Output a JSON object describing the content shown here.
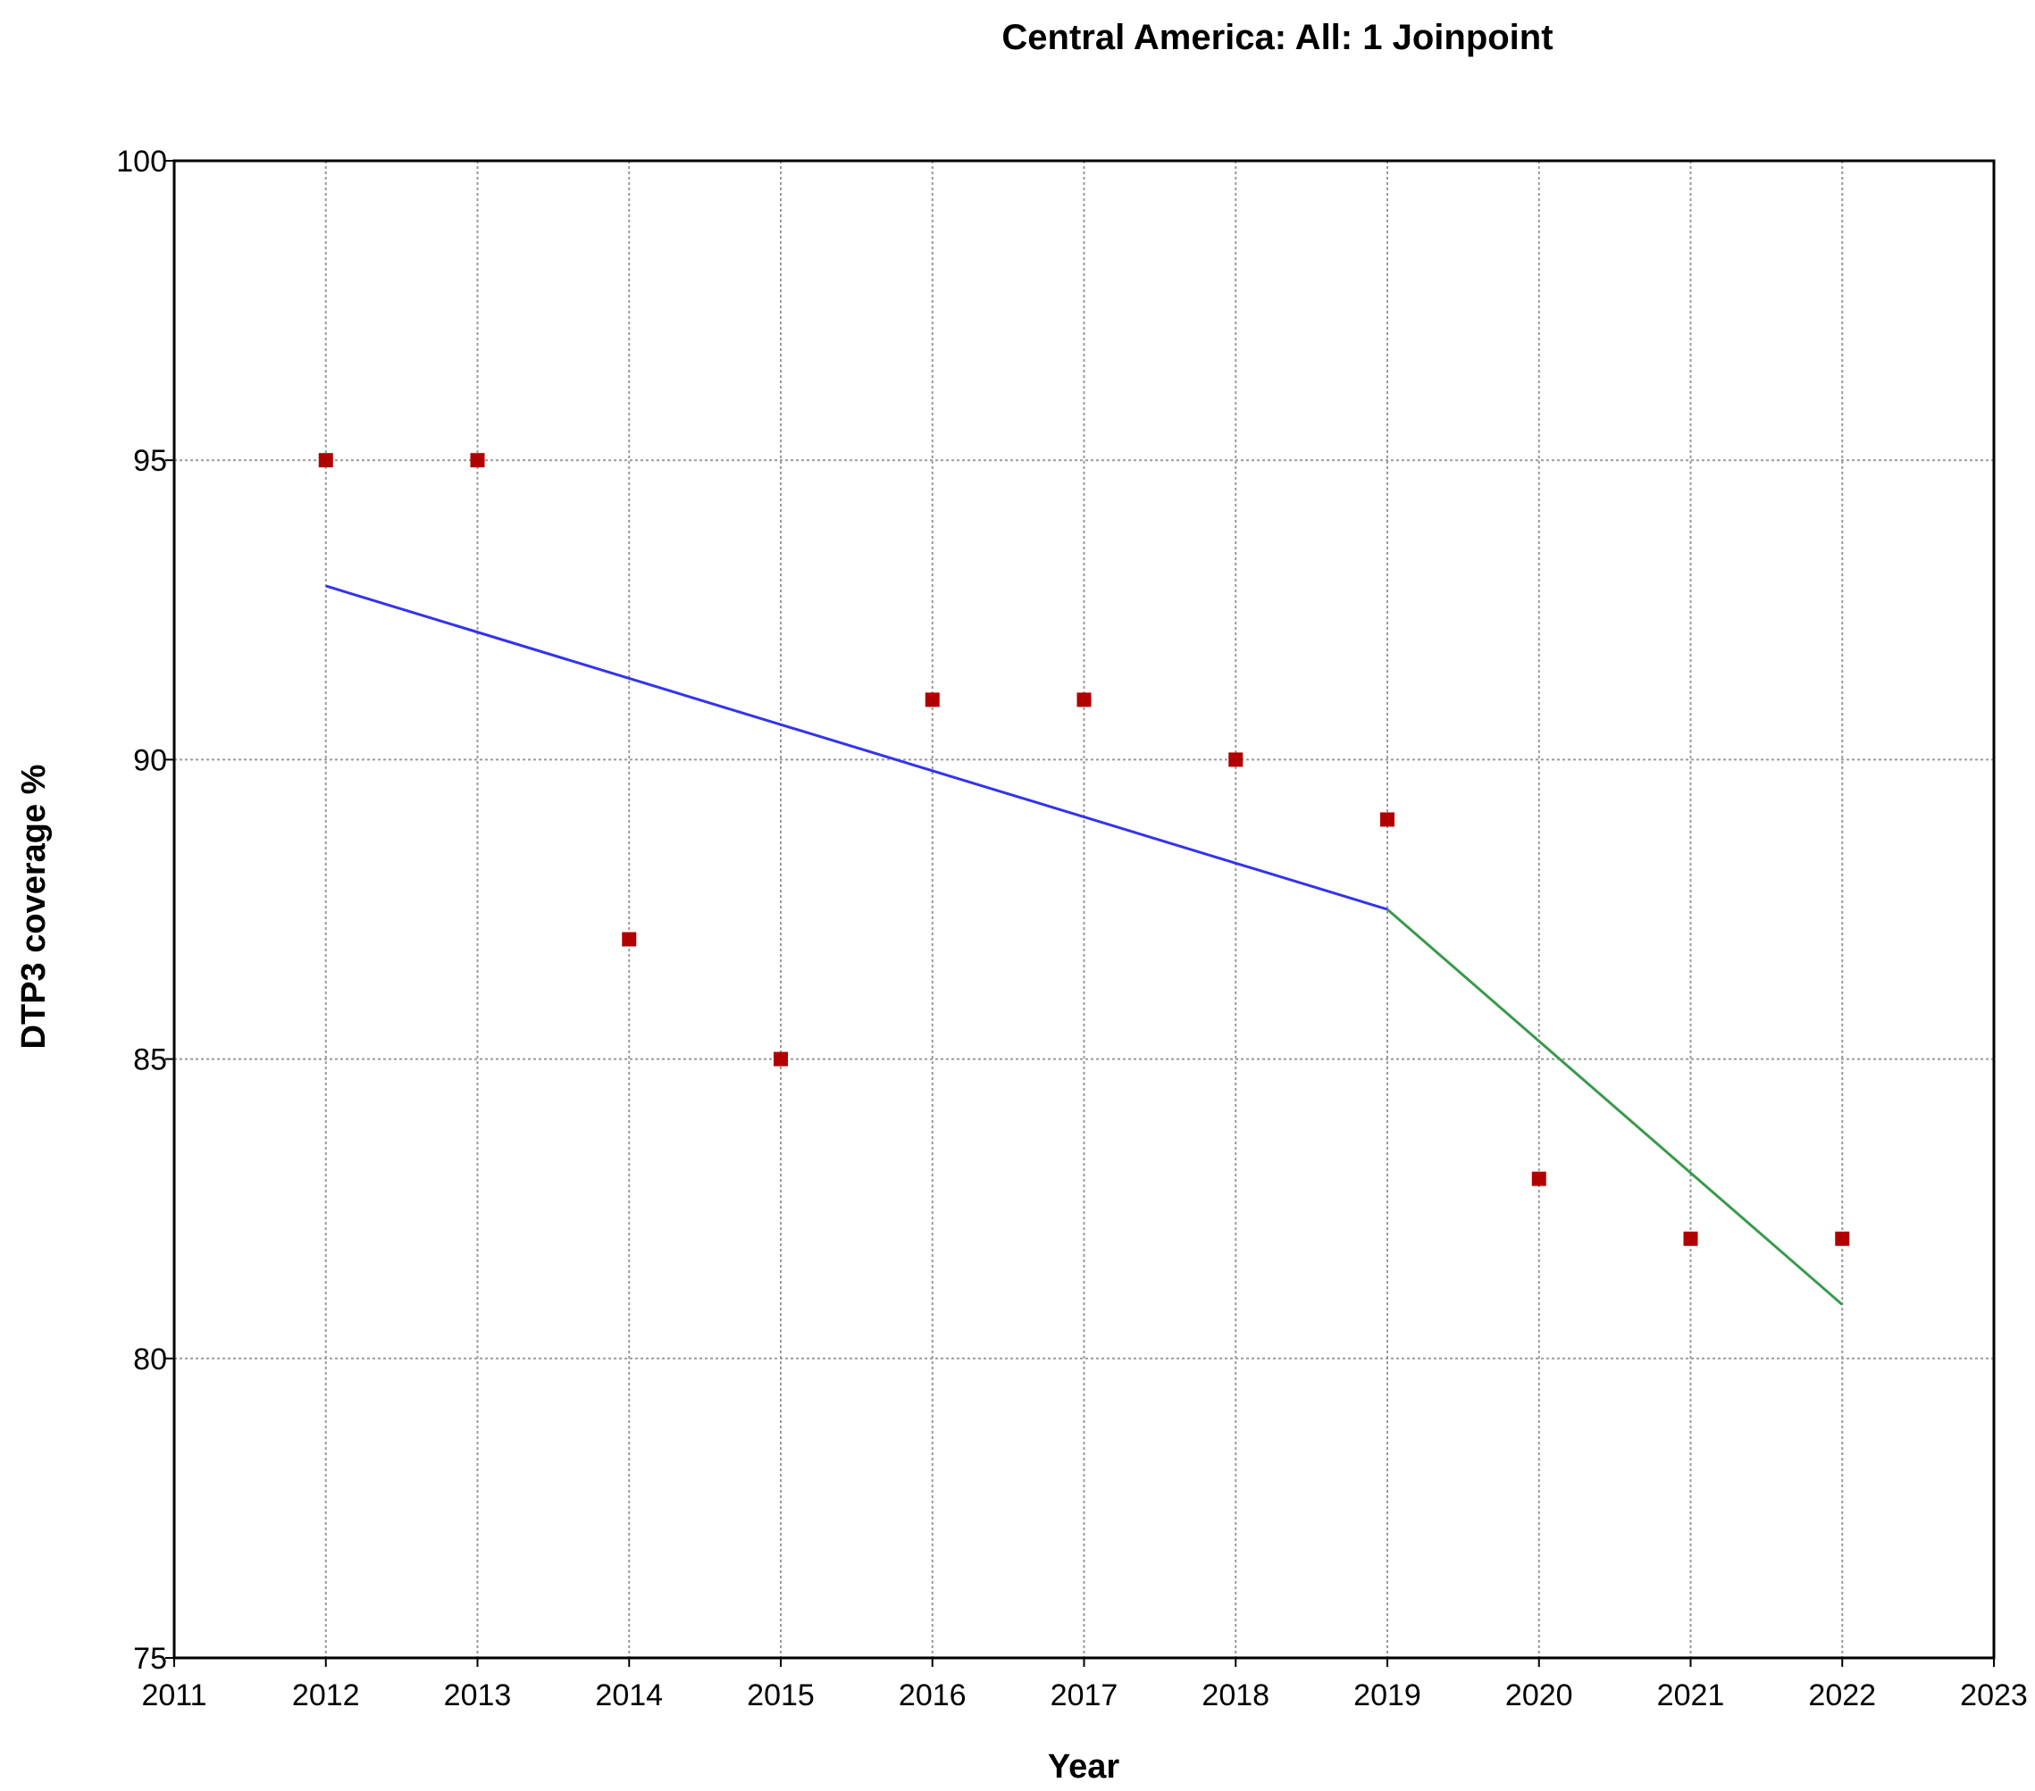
{
  "chart_data": {
    "type": "scatter",
    "title": "Central America: All: 1 Joinpoint",
    "xlabel": "Year",
    "ylabel": "DTP3 coverage %",
    "xlim": [
      2011,
      2023
    ],
    "ylim": [
      75,
      100
    ],
    "x_ticks": [
      2011,
      2012,
      2013,
      2014,
      2015,
      2016,
      2017,
      2018,
      2019,
      2020,
      2021,
      2022,
      2023
    ],
    "y_ticks": [
      75,
      80,
      85,
      90,
      95,
      100
    ],
    "grid": true,
    "observed": {
      "color": "#b00000",
      "x": [
        2012,
        2013,
        2014,
        2015,
        2016,
        2017,
        2018,
        2019,
        2020,
        2021,
        2022
      ],
      "y": [
        95,
        95,
        87,
        85,
        91,
        91,
        90,
        89,
        83,
        82,
        82
      ]
    },
    "trend_segments": [
      {
        "color": "#3333ee",
        "x": [
          2012,
          2019
        ],
        "y": [
          92.9,
          87.5
        ]
      },
      {
        "color": "#3a9a4a",
        "x": [
          2019,
          2022
        ],
        "y": [
          87.5,
          80.9
        ]
      }
    ]
  }
}
